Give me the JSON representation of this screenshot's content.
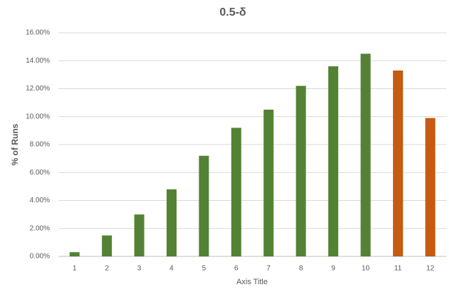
{
  "chart_data": {
    "type": "bar",
    "title": "0.5-δ",
    "y_label": "% of Runs",
    "x_label": "Axis Title",
    "categories": [
      "1",
      "2",
      "3",
      "4",
      "5",
      "6",
      "7",
      "8",
      "9",
      "10",
      "11",
      "12"
    ],
    "values": [
      0.3,
      1.5,
      3.0,
      4.8,
      7.2,
      9.2,
      10.5,
      12.2,
      13.6,
      14.5,
      13.3,
      9.9
    ],
    "colors": [
      "#548235",
      "#548235",
      "#548235",
      "#548235",
      "#548235",
      "#548235",
      "#548235",
      "#548235",
      "#548235",
      "#548235",
      "#c55a11",
      "#c55a11"
    ],
    "ylim": [
      0,
      16
    ],
    "yticks": [
      {
        "value": 0,
        "label": "0.00%"
      },
      {
        "value": 2,
        "label": "2.00%"
      },
      {
        "value": 4,
        "label": "4.00%"
      },
      {
        "value": 6,
        "label": "6.00%"
      },
      {
        "value": 8,
        "label": "8.00%"
      },
      {
        "value": 10,
        "label": "10.00%"
      },
      {
        "value": 12,
        "label": "12.00%"
      },
      {
        "value": 14,
        "label": "14.00%"
      },
      {
        "value": 16,
        "label": "16.00%"
      }
    ],
    "grid": true
  }
}
